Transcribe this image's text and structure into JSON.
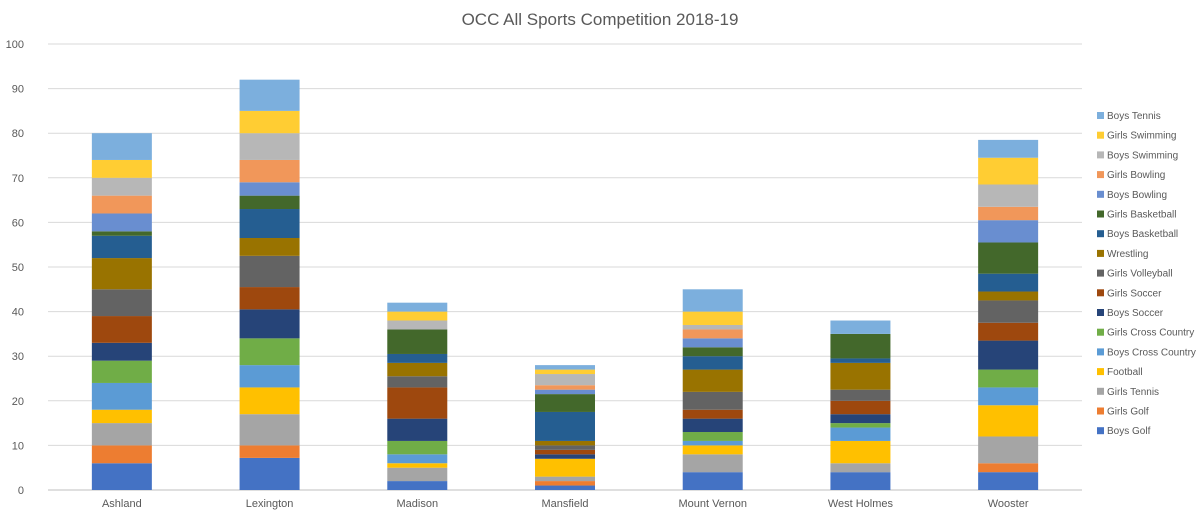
{
  "chart_data": {
    "type": "bar",
    "stacked": true,
    "title": "OCC All Sports Competition 2018-19",
    "xlabel": "",
    "ylabel": "",
    "ylim": [
      0,
      100
    ],
    "yticks": [
      0,
      10,
      20,
      30,
      40,
      50,
      60,
      70,
      80,
      90,
      100
    ],
    "grid": true,
    "legend_position": "right",
    "categories": [
      "Ashland",
      "Lexington",
      "Madison",
      "Mansfield",
      "Mount Vernon",
      "West Holmes",
      "Wooster"
    ],
    "series": [
      {
        "name": "Boys Golf",
        "color": "#4472C4",
        "values": [
          6,
          7.2,
          2,
          1,
          4,
          4,
          4
        ]
      },
      {
        "name": "Girls Golf",
        "color": "#ED7D31",
        "values": [
          4,
          2.8,
          0,
          1,
          0,
          0,
          2
        ]
      },
      {
        "name": "Girls Tennis",
        "color": "#A5A5A5",
        "values": [
          5,
          7,
          3,
          1,
          4,
          2,
          6
        ]
      },
      {
        "name": "Football",
        "color": "#FFC000",
        "values": [
          3,
          6,
          1,
          4,
          2,
          5,
          7
        ]
      },
      {
        "name": "Boys Cross Country",
        "color": "#5B9BD5",
        "values": [
          6,
          5,
          2,
          0,
          1,
          3,
          4
        ]
      },
      {
        "name": "Girls Cross Country",
        "color": "#70AD47",
        "values": [
          5,
          6,
          3,
          0,
          2,
          1,
          4
        ]
      },
      {
        "name": "Boys Soccer",
        "color": "#264478",
        "values": [
          4,
          6.5,
          5,
          1,
          3,
          2,
          6.5
        ]
      },
      {
        "name": "Girls Soccer",
        "color": "#9E480E",
        "values": [
          6,
          5,
          7,
          1,
          2,
          3,
          4
        ]
      },
      {
        "name": "Girls Volleyball",
        "color": "#636363",
        "values": [
          6,
          7,
          2.5,
          1,
          4,
          2.5,
          5
        ]
      },
      {
        "name": "Wrestling",
        "color": "#997300",
        "values": [
          7,
          4,
          3,
          1,
          5,
          6,
          2
        ]
      },
      {
        "name": "Boys Basketball",
        "color": "#255E91",
        "values": [
          5,
          6.5,
          2,
          6.5,
          3,
          1,
          4
        ]
      },
      {
        "name": "Girls Basketball",
        "color": "#43682B",
        "values": [
          1,
          3,
          5.5,
          4,
          2,
          5.5,
          7
        ]
      },
      {
        "name": "Boys Bowling",
        "color": "#698ED0",
        "values": [
          4,
          3,
          0,
          1,
          2,
          0,
          5
        ]
      },
      {
        "name": "Girls Bowling",
        "color": "#F1975A",
        "values": [
          4,
          5,
          0,
          1,
          2,
          0,
          3
        ]
      },
      {
        "name": "Boys Swimming",
        "color": "#B7B7B7",
        "values": [
          4,
          6,
          2,
          2.5,
          1,
          0,
          5
        ]
      },
      {
        "name": "Girls Swimming",
        "color": "#FFCD33",
        "values": [
          4,
          5,
          2,
          1,
          3,
          0,
          6
        ]
      },
      {
        "name": "Boys Tennis",
        "color": "#7CAFDD",
        "values": [
          6,
          7,
          2,
          1,
          5,
          3,
          4
        ]
      }
    ]
  },
  "colors": {
    "gridline": "#D9D9D9",
    "axis": "#BFBFBF",
    "text": "#595959"
  }
}
